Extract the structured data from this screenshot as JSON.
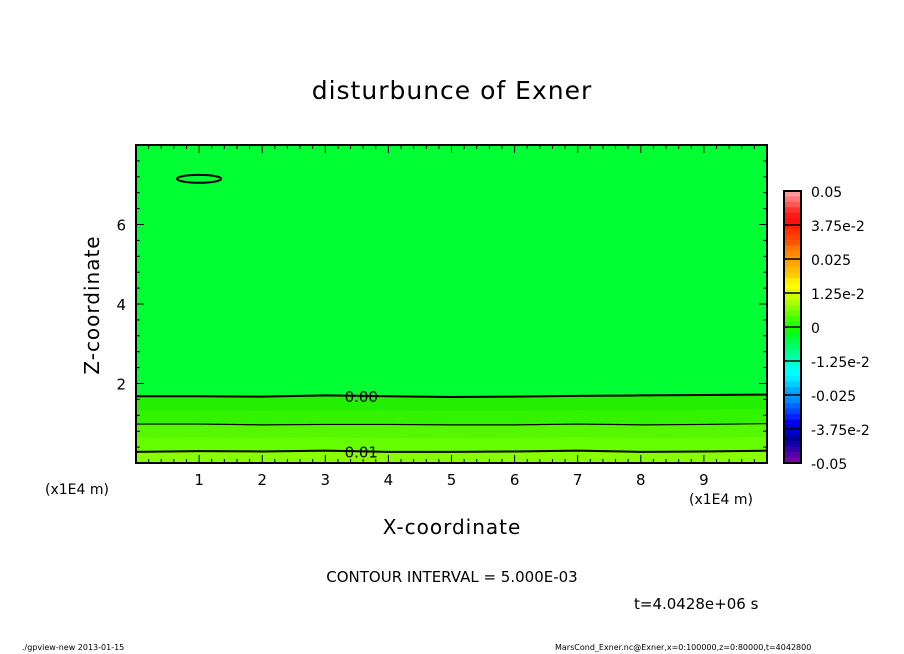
{
  "chart_data": {
    "type": "heatmap",
    "title": "disturbunce of Exner",
    "xlabel": "X-coordinate",
    "ylabel": "Z-coordinate",
    "x_unit_label": "(x1E4 m)",
    "y_unit_label": "(x1E4 m)",
    "xlim": [
      0,
      10
    ],
    "ylim": [
      0,
      8
    ],
    "x_ticks": [
      1,
      2,
      3,
      4,
      5,
      6,
      7,
      8,
      9
    ],
    "y_ticks": [
      2,
      4,
      6
    ],
    "contour_interval_text": "CONTOUR INTERVAL = 5.000E-03",
    "time_text": "t=4.0428e+06 s",
    "contours": [
      {
        "level": 0.0,
        "label": "0.00",
        "z": [
          1.68,
          1.68,
          1.67,
          1.7,
          1.68,
          1.66,
          1.67,
          1.69,
          1.7,
          1.71,
          1.72
        ]
      },
      {
        "level": 0.005,
        "label": "",
        "z": [
          0.98,
          0.98,
          0.96,
          0.97,
          0.97,
          0.96,
          0.96,
          0.98,
          0.96,
          0.97,
          0.99
        ]
      },
      {
        "level": 0.01,
        "label": "0.01",
        "z": [
          0.28,
          0.3,
          0.29,
          0.31,
          0.28,
          0.28,
          0.29,
          0.31,
          0.28,
          0.29,
          0.31
        ]
      }
    ],
    "contour_x": [
      0,
      1,
      2,
      3,
      4,
      5,
      6,
      7,
      8,
      9,
      10
    ],
    "closed_contour": {
      "level": 0.0,
      "center": [
        1.0,
        7.15
      ],
      "radius": [
        0.35,
        0.1
      ]
    },
    "colorbar": {
      "range": [
        -0.05,
        0.05
      ],
      "tick_labels": [
        "0.05",
        "3.75e-2",
        "0.025",
        "1.25e-2",
        "0",
        "-1.25e-2",
        "-0.025",
        "-3.75e-2",
        "-0.05"
      ],
      "colors": [
        "#ff9999",
        "#ff7777",
        "#ff5555",
        "#ff3333",
        "#ff1a1a",
        "#ff1010",
        "#ff2200",
        "#ff3300",
        "#ff4400",
        "#ff5500",
        "#ff7700",
        "#ff8800",
        "#ff9900",
        "#ffaa00",
        "#ffbb00",
        "#ffcc00",
        "#ffee00",
        "#ffff00",
        "#ddff00",
        "#ccff00",
        "#aaff00",
        "#88ff00",
        "#66ff00",
        "#44ff00",
        "#22ff00",
        "#11ff00",
        "#00ff22",
        "#00ff44",
        "#00ff66",
        "#00ff88",
        "#00ffaa",
        "#00ffcc",
        "#00ffee",
        "#00ffff",
        "#00eeff",
        "#00ccff",
        "#00aaff",
        "#0099ff",
        "#0088ff",
        "#0066ff",
        "#0044ff",
        "#0022ff",
        "#0000ee",
        "#0000dd",
        "#0000cc",
        "#000099",
        "#1100aa",
        "#3300aa",
        "#5500aa",
        "#7700aa"
      ]
    },
    "band_colors": [
      "#00ff33",
      "#22f000",
      "#33f400",
      "#55f800",
      "#66ff00",
      "#88ff00"
    ]
  },
  "footer": {
    "left": "./gpview-new  2013-01-15",
    "right": "MarsCond_Exner.nc@Exner,x=0:100000,z=0:80000,t=4042800"
  }
}
